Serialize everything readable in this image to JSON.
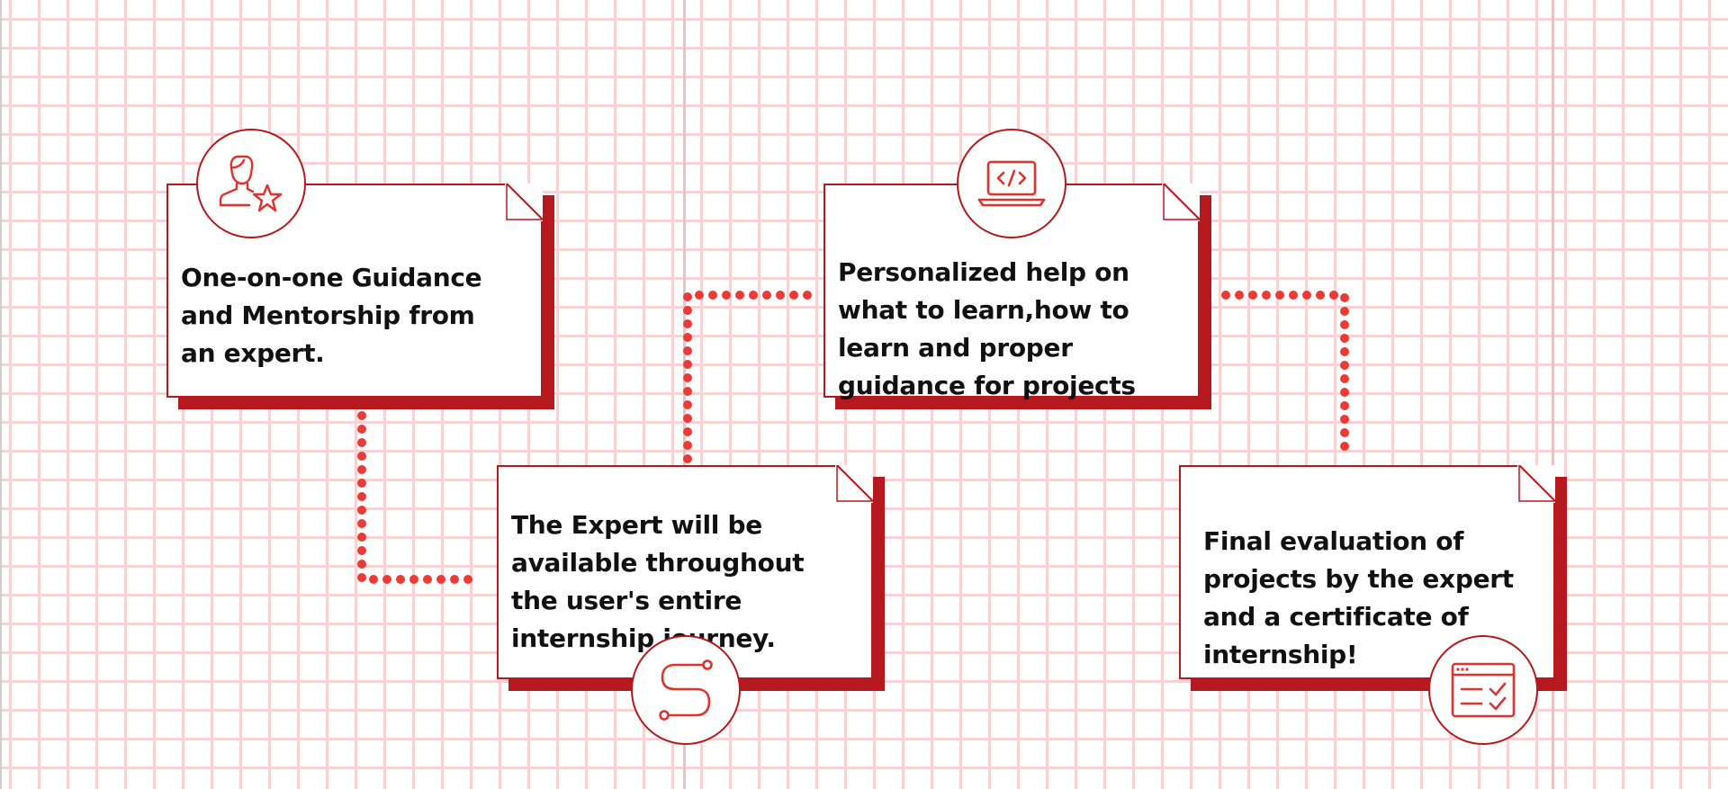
{
  "colors": {
    "accent": "#b5191d",
    "icon": "#e0322f",
    "dots": "#ec3a36",
    "grid": "#f6d4d6"
  },
  "steps": [
    {
      "id": 1,
      "text": "One-on-one Guidance and Mentorship from an expert.",
      "icon": "user-star-icon"
    },
    {
      "id": 2,
      "text": "The Expert will be available throughout the user's entire internship journey.",
      "icon": "route-icon"
    },
    {
      "id": 3,
      "text": "Personalized help on what to learn,how to learn and proper guidance for projects",
      "icon": "laptop-code-icon"
    },
    {
      "id": 4,
      "text": "Final evaluation of projects by the expert and a certificate of internship!",
      "icon": "checklist-window-icon"
    }
  ]
}
